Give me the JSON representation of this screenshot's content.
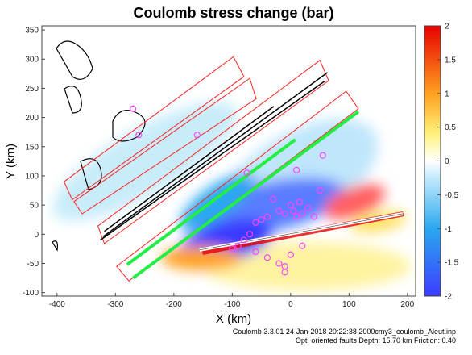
{
  "chart_data": {
    "type": "stress-map",
    "title": "Coulomb stress change (bar)",
    "xlabel": "X (km)",
    "ylabel": "Y (km)",
    "xlim": [
      -426,
      214
    ],
    "ylim": [
      -106,
      357
    ],
    "xticks": [
      -400,
      -300,
      -200,
      -100,
      0,
      100,
      200
    ],
    "yticks": [
      -100,
      -50,
      0,
      50,
      100,
      150,
      200,
      250,
      300,
      350
    ],
    "colorbar": {
      "lim": [
        -2,
        2
      ],
      "ticks": [
        -2,
        -1.5,
        -1,
        -0.5,
        0,
        0.5,
        1,
        1.5,
        2
      ]
    },
    "points": {
      "color": "#ff44ff",
      "x": [
        -60,
        -50,
        -40,
        -30,
        -20,
        -10,
        0,
        5,
        10,
        15,
        20,
        30,
        40,
        -70,
        -80,
        -90,
        -100,
        -60,
        -40,
        -20,
        -10,
        0,
        20,
        55,
        50,
        -160,
        -260,
        -270,
        -75,
        10,
        -10
      ],
      "y": [
        20,
        25,
        30,
        60,
        40,
        35,
        50,
        40,
        30,
        55,
        35,
        45,
        30,
        0,
        -10,
        -20,
        -25,
        -30,
        -40,
        -50,
        -55,
        -35,
        -20,
        135,
        75,
        170,
        170,
        215,
        105,
        110,
        -65
      ]
    },
    "fault_boxes": {
      "color": "#ff2020",
      "x": [
        [
          -388,
          -98,
          -80,
          -374
        ],
        [
          -371,
          -70,
          -59,
          -357
        ],
        [
          -330,
          50,
          65,
          -319
        ],
        [
          -298,
          95,
          116,
          -277
        ]
      ],
      "y": [
        [
          90,
          304,
          270,
          59
        ],
        [
          56,
          267,
          232,
          35
        ],
        [
          14,
          298,
          263,
          -16
        ],
        [
          -55,
          245,
          215,
          -80
        ]
      ]
    },
    "fault_lines": {
      "color": "#000000",
      "x": [
        [
          -321,
          63
        ],
        [
          -319,
          -29
        ],
        [
          -326,
          58
        ]
      ],
      "y": [
        [
          -4,
          277
        ],
        [
          5,
          219
        ],
        [
          -10,
          262
        ]
      ]
    },
    "receiver_lines": {
      "color": "#22ee44",
      "x": [
        [
          -280,
          8
        ],
        [
          -270,
          116
        ]
      ],
      "y": [
        [
          -52,
          162
        ],
        [
          -75,
          210
        ]
      ]
    },
    "rupture": {
      "x": [
        -156,
        192
      ],
      "y": [
        -27,
        35
      ]
    }
  },
  "footer": [
    "Coulomb 3.3.01 24-Jan-2018 20:22:38 2000cmy3_coulomb_Aleut.inp",
    "Opt. oriented faults  Depth: 15.70 km  Friction: 0.40"
  ]
}
